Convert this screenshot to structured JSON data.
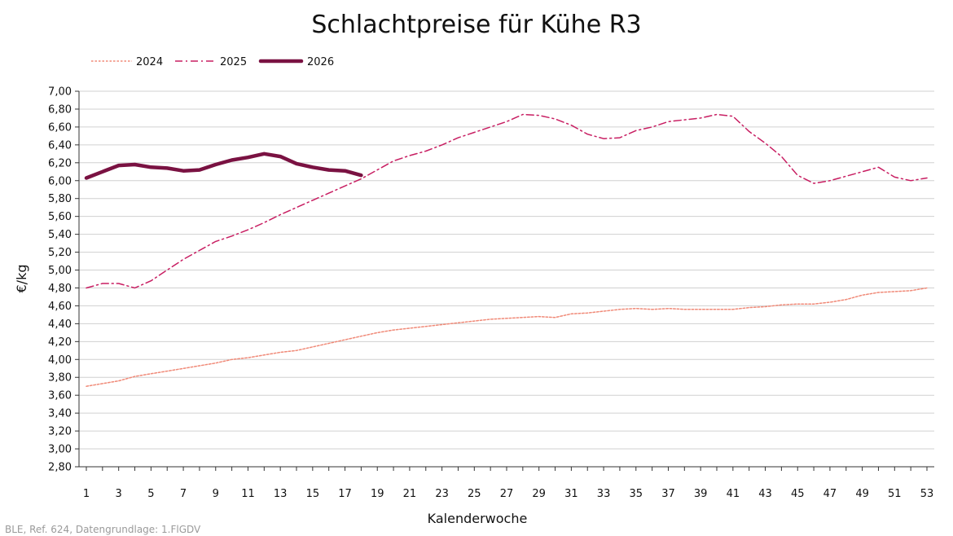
{
  "chart_data": {
    "type": "line",
    "title": "Schlachtpreise für Kühe R3",
    "xlabel": "Kalenderwoche",
    "ylabel": "€/kg",
    "source": "BLE, Ref. 624, Datengrundlage: 1.FlGDV",
    "xlim": [
      1,
      53
    ],
    "ylim": [
      2.8,
      7.0
    ],
    "ytick_step": 0.2,
    "xticks": [
      1,
      3,
      5,
      7,
      9,
      11,
      13,
      15,
      17,
      19,
      21,
      23,
      25,
      27,
      29,
      31,
      33,
      35,
      37,
      39,
      41,
      43,
      45,
      47,
      49,
      51,
      53
    ],
    "yticks": [
      "2,80",
      "3,00",
      "3,20",
      "3,40",
      "3,60",
      "3,80",
      "4,00",
      "4,20",
      "4,40",
      "4,60",
      "4,80",
      "5,00",
      "5,20",
      "5,40",
      "5,60",
      "5,80",
      "6,00",
      "6,20",
      "6,40",
      "6,60",
      "6,80",
      "7,00"
    ],
    "grid": "horizontal",
    "legend_position": "top-left",
    "series": [
      {
        "name": "2024",
        "color": "#f08a78",
        "style": "dotted",
        "x": [
          1,
          2,
          3,
          4,
          5,
          6,
          7,
          8,
          9,
          10,
          11,
          12,
          13,
          14,
          15,
          16,
          17,
          18,
          19,
          20,
          21,
          22,
          23,
          24,
          25,
          26,
          27,
          28,
          29,
          30,
          31,
          32,
          33,
          34,
          35,
          36,
          37,
          38,
          39,
          40,
          41,
          42,
          43,
          44,
          45,
          46,
          47,
          48,
          49,
          50,
          51,
          52,
          53
        ],
        "values": [
          3.7,
          3.73,
          3.76,
          3.81,
          3.84,
          3.87,
          3.9,
          3.93,
          3.96,
          4.0,
          4.02,
          4.05,
          4.08,
          4.1,
          4.14,
          4.18,
          4.22,
          4.26,
          4.3,
          4.33,
          4.35,
          4.37,
          4.39,
          4.41,
          4.43,
          4.45,
          4.46,
          4.47,
          4.48,
          4.47,
          4.51,
          4.52,
          4.54,
          4.56,
          4.57,
          4.56,
          4.57,
          4.56,
          4.56,
          4.56,
          4.56,
          4.58,
          4.59,
          4.61,
          4.62,
          4.62,
          4.64,
          4.67,
          4.72,
          4.75,
          4.76,
          4.77,
          4.8
        ]
      },
      {
        "name": "2025",
        "color": "#c81e62",
        "style": "dashdot",
        "x": [
          1,
          2,
          3,
          4,
          5,
          6,
          7,
          8,
          9,
          10,
          11,
          12,
          13,
          14,
          15,
          16,
          17,
          18,
          19,
          20,
          21,
          22,
          23,
          24,
          25,
          26,
          27,
          28,
          29,
          30,
          31,
          32,
          33,
          34,
          35,
          36,
          37,
          38,
          39,
          40,
          41,
          42,
          43,
          44,
          45,
          46,
          47,
          48,
          49,
          50,
          51,
          52,
          53
        ],
        "values": [
          4.8,
          4.85,
          4.85,
          4.8,
          4.88,
          5.0,
          5.12,
          5.22,
          5.32,
          5.38,
          5.45,
          5.53,
          5.62,
          5.7,
          5.78,
          5.86,
          5.94,
          6.02,
          6.12,
          6.22,
          6.28,
          6.33,
          6.4,
          6.48,
          6.54,
          6.6,
          6.66,
          6.74,
          6.73,
          6.69,
          6.62,
          6.52,
          6.47,
          6.48,
          6.56,
          6.6,
          6.66,
          6.68,
          6.7,
          6.74,
          6.72,
          6.55,
          6.42,
          6.27,
          6.06,
          5.97,
          6.0,
          6.05,
          6.1,
          6.15,
          6.04,
          6.0,
          6.03
        ]
      },
      {
        "name": "2026",
        "color": "#7a1242",
        "style": "solid-thick",
        "x": [
          1,
          2,
          3,
          4,
          5,
          6,
          7,
          8,
          9,
          10,
          11,
          12,
          13,
          14,
          15,
          16,
          17,
          18
        ],
        "values": [
          6.03,
          6.1,
          6.17,
          6.18,
          6.15,
          6.14,
          6.11,
          6.12,
          6.18,
          6.23,
          6.26,
          6.3,
          6.27,
          6.19,
          6.15,
          6.12,
          6.11,
          6.06
        ]
      }
    ]
  }
}
